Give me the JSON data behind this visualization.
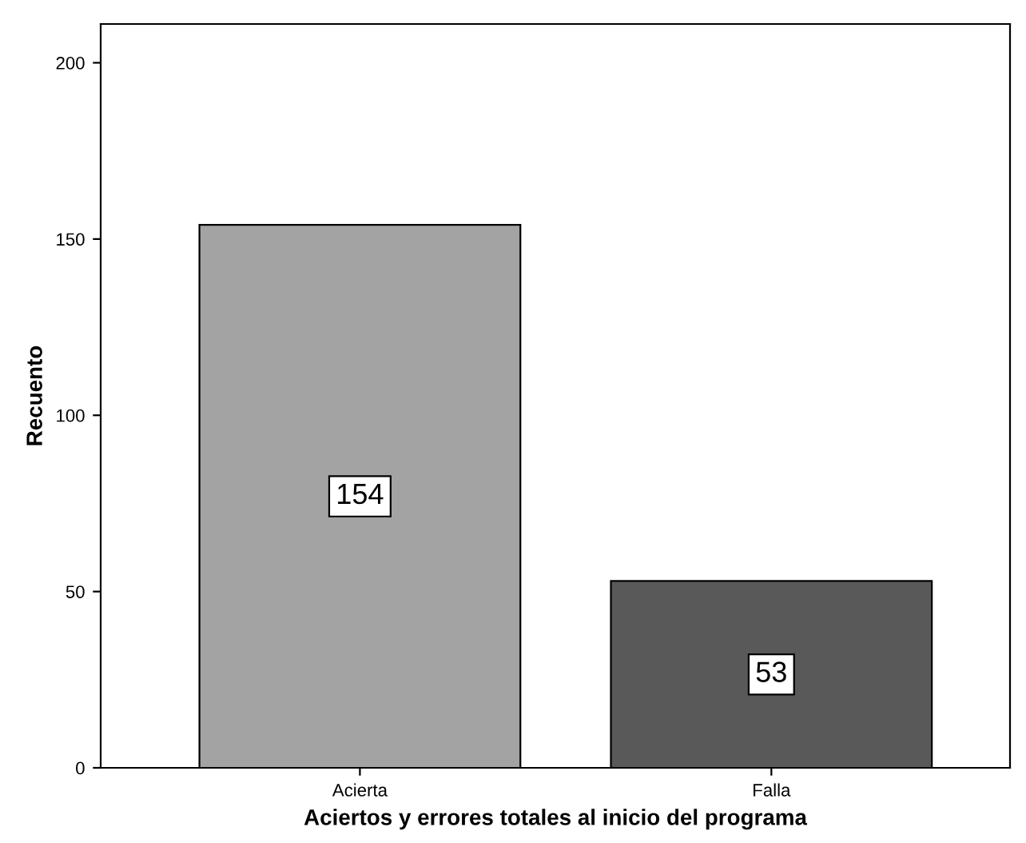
{
  "chart_data": {
    "type": "bar",
    "xlabel": "Aciertos y errores totales al inicio del programa",
    "ylabel": "Recuento",
    "categories": [
      "Acierta",
      "Falla"
    ],
    "values": [
      154,
      53
    ],
    "colors": [
      "#a3a3a3",
      "#595959"
    ],
    "ylim": [
      0,
      211
    ],
    "yticks": [
      0,
      50,
      100,
      150,
      200
    ],
    "data_labels": true,
    "grid": false,
    "legend": false
  }
}
